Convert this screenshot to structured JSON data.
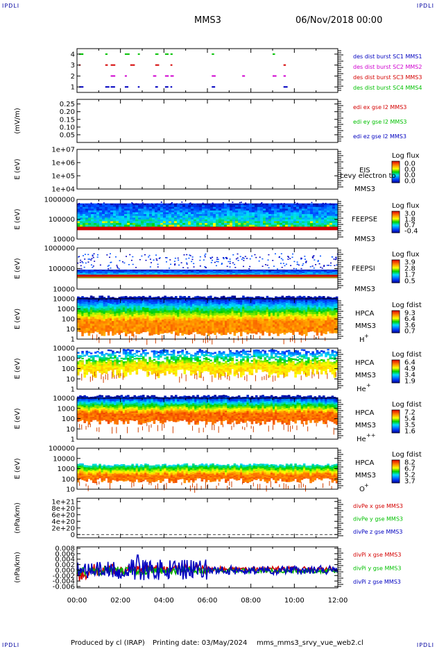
{
  "header": {
    "corner_tl": "IPDLI",
    "corner_tr": "IPDLI",
    "corner_bl": "IPDLI",
    "corner_br": "IPDLI",
    "mission": "MMS3",
    "date": "06/Nov/2018 00:00"
  },
  "footer": {
    "produced_by": "Produced by cl (IRAP)",
    "printing_date": "Printing date: 03/May/2024",
    "file": "mms_mms3_srvy_vue_web2.cl"
  },
  "colors": {
    "red": "#d40000",
    "green": "#00c000",
    "blue": "#0000c0",
    "magenta": "#d000d0"
  },
  "chart_data": [
    {
      "id": "burst",
      "type": "scatter",
      "y_ticks": [
        "1",
        "2",
        "3",
        "4"
      ],
      "ylim": [
        0.5,
        4.5
      ],
      "legend": [
        {
          "label": "des dist burst SC1 MMS1",
          "color": "#0000c0"
        },
        {
          "label": "des dist burst SC2 MMS2",
          "color": "#d000d0"
        },
        {
          "label": "des dist burst SC3 MMS3",
          "color": "#d40000"
        },
        {
          "label": "des dist burst SC4 MMS4",
          "color": "#00c000"
        }
      ],
      "bursts_hours": [
        0.1,
        0.2,
        1.3,
        1.55,
        2.2,
        2.45,
        2.8,
        3.5,
        3.6,
        4.05,
        4.3,
        6.2,
        7.6,
        9.0,
        9.5
      ]
    },
    {
      "id": "edi",
      "type": "line",
      "ylabel": "(mV/m)",
      "y_ticks": [
        "0.25",
        "0.20",
        "0.15",
        "0.10",
        "0.05"
      ],
      "ylim": [
        0.0,
        0.28
      ],
      "legend": [
        {
          "label": "edi ex gse l2 MMS3",
          "color": "#d40000"
        },
        {
          "label": "edi ey gse l2 MMS3",
          "color": "#00c000"
        },
        {
          "label": "edi ez gse l2 MMS3",
          "color": "#0000c0"
        }
      ]
    },
    {
      "id": "eis",
      "type": "heatmap",
      "ylabel": "E (eV)",
      "y_ticks": [
        "1e+07",
        "1e+06",
        "1e+05",
        "1e+04"
      ],
      "log_decades": [
        4,
        7
      ],
      "instrument": "EIS",
      "spacecraft": "MMS3",
      "overlay_text": "Levy electron to",
      "cbar_title": "Log flux",
      "cbar_ticks": [
        "0.0",
        "0.0",
        "0.0",
        "0.0"
      ]
    },
    {
      "id": "feepse",
      "type": "heatmap",
      "ylabel": "E (eV)",
      "y_ticks": [
        "1000000",
        "100000",
        "10000"
      ],
      "log_decades": [
        4,
        6
      ],
      "instrument": "FEEPSE",
      "spacecraft": "MMS3",
      "cbar_title": "Log flux",
      "cbar_ticks": [
        "3.0",
        "1.8",
        "0.7",
        "-0.4"
      ]
    },
    {
      "id": "feepsi",
      "type": "heatmap",
      "ylabel": "E (eV)",
      "y_ticks": [
        "1000000",
        "100000",
        "10000"
      ],
      "log_decades": [
        4,
        6
      ],
      "instrument": "FEEPSI",
      "spacecraft": "MMS3",
      "cbar_title": "Log flux",
      "cbar_ticks": [
        "3.9",
        "2.8",
        "1.7",
        "0.5"
      ]
    },
    {
      "id": "hpca_h",
      "type": "heatmap",
      "ylabel": "E (eV)",
      "y_ticks": [
        "10000",
        "1000",
        "100",
        "10",
        "1"
      ],
      "log_decades": [
        0,
        4
      ],
      "instrument": "HPCA",
      "spacecraft": "MMS3",
      "species": "H",
      "species_sup": "+",
      "cbar_title": "Log fdist",
      "cbar_ticks": [
        "9.3",
        "6.4",
        "3.6",
        "0.7"
      ]
    },
    {
      "id": "hpca_he1",
      "type": "heatmap",
      "ylabel": "E (eV)",
      "y_ticks": [
        "10000",
        "1000",
        "100",
        "10",
        "1"
      ],
      "log_decades": [
        0,
        4
      ],
      "instrument": "HPCA",
      "spacecraft": "MMS3",
      "species": "He",
      "species_sup": "+",
      "cbar_title": "Log fdist",
      "cbar_ticks": [
        "6.4",
        "4.9",
        "3.4",
        "1.9"
      ]
    },
    {
      "id": "hpca_he2",
      "type": "heatmap",
      "ylabel": "E (eV)",
      "y_ticks": [
        "10000",
        "1000",
        "100",
        "10",
        "1"
      ],
      "log_decades": [
        0,
        4
      ],
      "instrument": "HPCA",
      "spacecraft": "MMS3",
      "species": "He",
      "species_sup": "++",
      "cbar_title": "Log fdist",
      "cbar_ticks": [
        "7.2",
        "5.4",
        "3.5",
        "1.6"
      ]
    },
    {
      "id": "hpca_o",
      "type": "heatmap",
      "ylabel": "E (eV)",
      "y_ticks": [
        "100000",
        "10000",
        "1000",
        "100",
        "10"
      ],
      "log_decades": [
        1,
        5
      ],
      "instrument": "HPCA",
      "spacecraft": "MMS3",
      "species": "O",
      "species_sup": "+",
      "cbar_title": "Log fdist",
      "cbar_ticks": [
        "8.2",
        "6.7",
        "5.2",
        "3.7"
      ]
    },
    {
      "id": "divpe",
      "type": "line",
      "ylabel": "(nPa/km)",
      "y_ticks": [
        "1e+21",
        "8e+20",
        "6e+20",
        "4e+20",
        "2e+20",
        "0"
      ],
      "ylim": [
        -1e+20,
        1.1e+21
      ],
      "legend": [
        {
          "label": "divPe x gse MMS3",
          "color": "#d40000"
        },
        {
          "label": "divPe y gse MMS3",
          "color": "#00c000"
        },
        {
          "label": "divPe z gse MMS3",
          "color": "#0000c0"
        }
      ]
    },
    {
      "id": "divpi",
      "type": "line",
      "ylabel": "(nPa/km)",
      "y_ticks": [
        "0.008",
        "0.006",
        "0.004",
        "0.002",
        "0.000",
        "-0.002",
        "-0.004",
        "-0.006"
      ],
      "ylim": [
        -0.0065,
        0.0085
      ],
      "legend": [
        {
          "label": "divPi x gse MMS3",
          "color": "#d40000"
        },
        {
          "label": "divPi y gse MMS3",
          "color": "#00c000"
        },
        {
          "label": "divPi z gse MMS3",
          "color": "#0000c0"
        }
      ]
    }
  ],
  "x_axis": {
    "ticks": [
      "00:00",
      "02:00",
      "04:00",
      "06:00",
      "08:00",
      "10:00",
      "12:00"
    ],
    "range_hours": [
      0,
      12
    ]
  }
}
